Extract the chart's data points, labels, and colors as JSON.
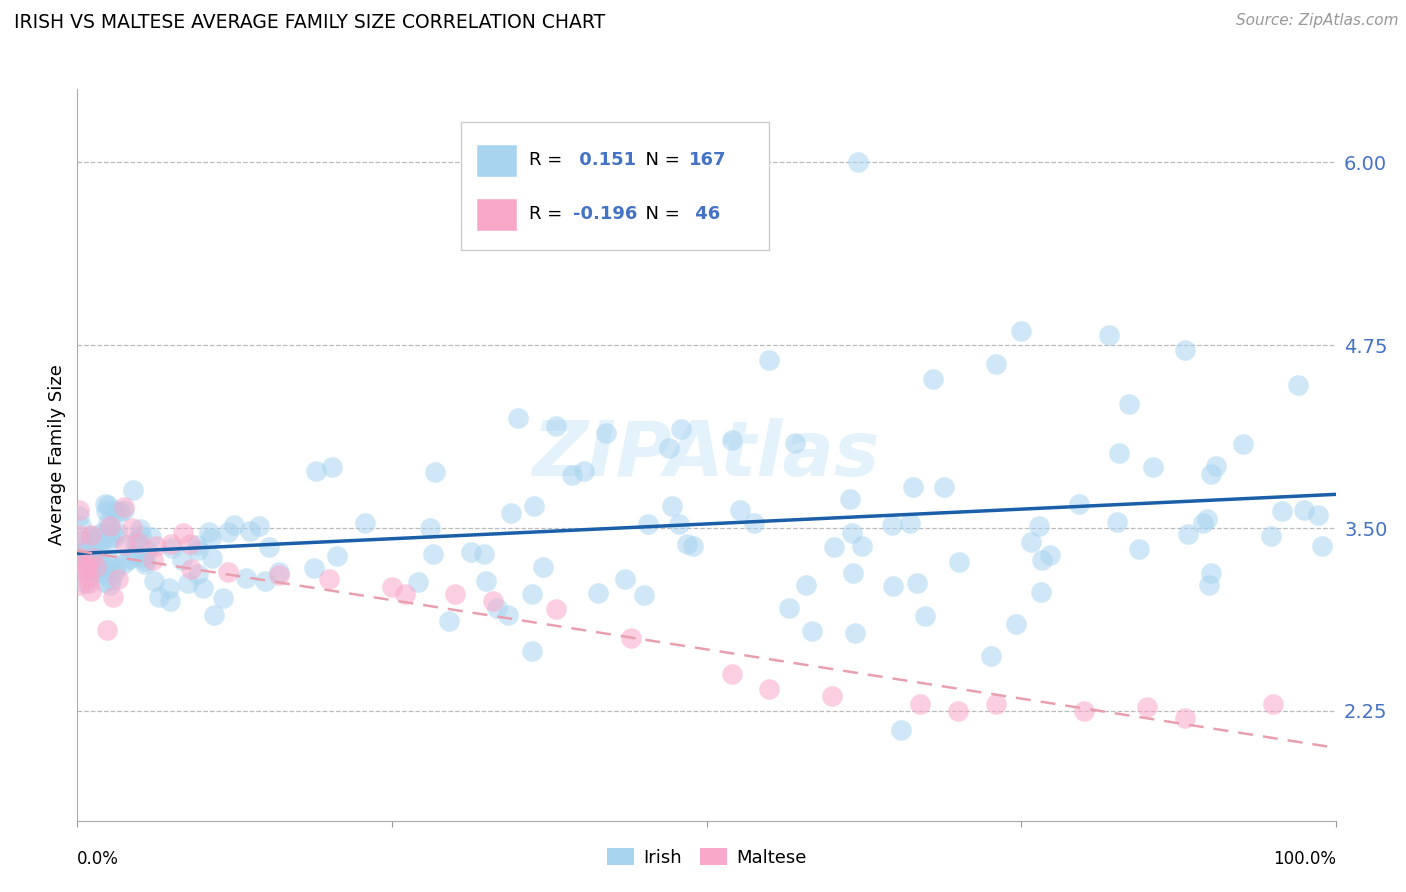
{
  "title": "IRISH VS MALTESE AVERAGE FAMILY SIZE CORRELATION CHART",
  "source": "Source: ZipAtlas.com",
  "ylabel": "Average Family Size",
  "yticks": [
    2.25,
    3.5,
    4.75,
    6.0
  ],
  "xlim": [
    0.0,
    1.0
  ],
  "ylim": [
    1.5,
    6.5
  ],
  "irish_R": 0.151,
  "irish_N": 167,
  "maltese_R": -0.196,
  "maltese_N": 46,
  "irish_color": "#a8d4f0",
  "maltese_color": "#f9a8c9",
  "irish_line_color": "#1a5fa8",
  "maltese_line_color": "#e8a0b0",
  "watermark": "ZIPAtlas",
  "ytick_color": "#4472c4"
}
